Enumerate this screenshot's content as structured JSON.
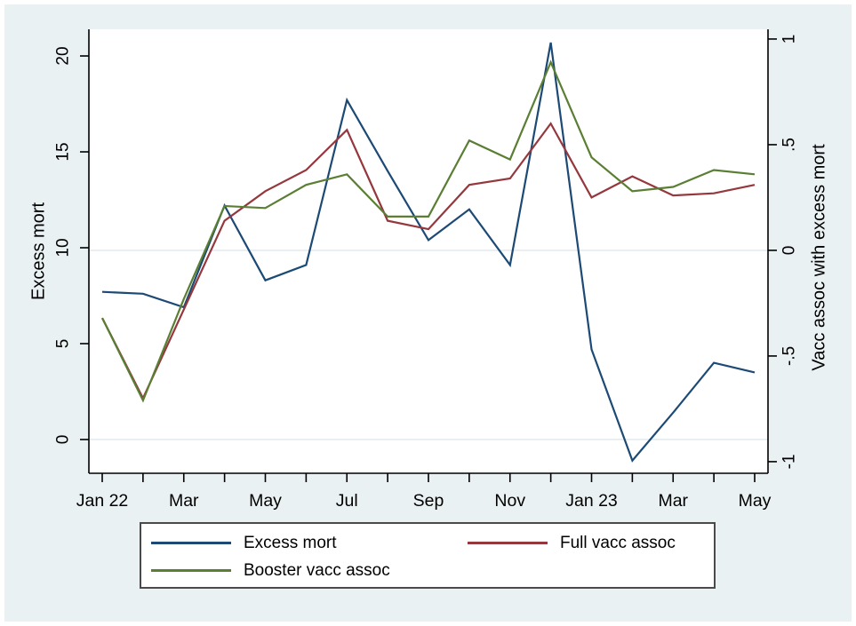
{
  "window": {
    "outer_border_color": "#FFFFFF",
    "background_color": "#EAF1F3",
    "plot_background_color": "#FFFFFF"
  },
  "chart_data": {
    "type": "line",
    "months": [
      "Jan 22",
      "Feb 22",
      "Mar 22",
      "Apr 22",
      "May 22",
      "Jun 22",
      "Jul 22",
      "Aug 22",
      "Sep 22",
      "Oct 22",
      "Nov 22",
      "Dec 22",
      "Jan 23",
      "Feb 23",
      "Mar 23",
      "Apr 23",
      "May 23"
    ],
    "x_tick_labels": [
      {
        "label": "Jan 22",
        "month_index": 0
      },
      {
        "label": "Mar",
        "month_index": 2
      },
      {
        "label": "May",
        "month_index": 4
      },
      {
        "label": "Jul",
        "month_index": 6
      },
      {
        "label": "Sep",
        "month_index": 8
      },
      {
        "label": "Nov",
        "month_index": 10
      },
      {
        "label": "Jan 23",
        "month_index": 12
      },
      {
        "label": "Mar",
        "month_index": 14
      },
      {
        "label": "May",
        "month_index": 16
      }
    ],
    "left_axis": {
      "title": "Excess mort",
      "ticks": [
        0,
        5,
        10,
        15,
        20
      ],
      "tick_labels": [
        "0",
        "5",
        "10",
        "15",
        "20"
      ],
      "range": [
        -1.76,
        21.39
      ]
    },
    "right_axis": {
      "title": "Vacc assoc with excess mort",
      "ticks": [
        -1,
        -0.5,
        0,
        0.5,
        1
      ],
      "tick_labels": [
        "-1",
        "-.5",
        "0",
        ".5",
        "1"
      ],
      "range": [
        -1.055,
        1.046
      ]
    },
    "reference_lines": [
      {
        "axis": "left",
        "value": 0
      },
      {
        "axis": "right",
        "value": 0
      }
    ],
    "grid_color": "#E3ECF1",
    "axis_color": "#000000",
    "text_color": "#000000",
    "series": [
      {
        "name": "Excess mort",
        "axis": "left",
        "color": "#1C4A75",
        "values": [
          7.7,
          7.6,
          6.9,
          12.2,
          8.3,
          9.1,
          17.7,
          14.0,
          10.4,
          12.0,
          9.1,
          20.7,
          4.7,
          -1.1,
          1.4,
          4.0,
          3.5
        ]
      },
      {
        "name": "Full vacc assoc",
        "axis": "right",
        "color": "#94383E",
        "values": [
          -0.32,
          -0.7,
          -0.28,
          0.14,
          0.28,
          0.38,
          0.57,
          0.14,
          0.1,
          0.31,
          0.34,
          0.6,
          0.25,
          0.35,
          0.26,
          0.27,
          0.31
        ]
      },
      {
        "name": "Booster vacc assoc",
        "axis": "right",
        "color": "#5A7E33",
        "values": [
          -0.32,
          -0.71,
          -0.23,
          0.21,
          0.2,
          0.31,
          0.36,
          0.16,
          0.16,
          0.52,
          0.43,
          0.89,
          0.44,
          0.28,
          0.3,
          0.38,
          0.36
        ]
      }
    ],
    "legend": {
      "position": "bottom",
      "entries": [
        "Excess mort",
        "Full vacc assoc",
        "Booster vacc assoc"
      ]
    }
  }
}
